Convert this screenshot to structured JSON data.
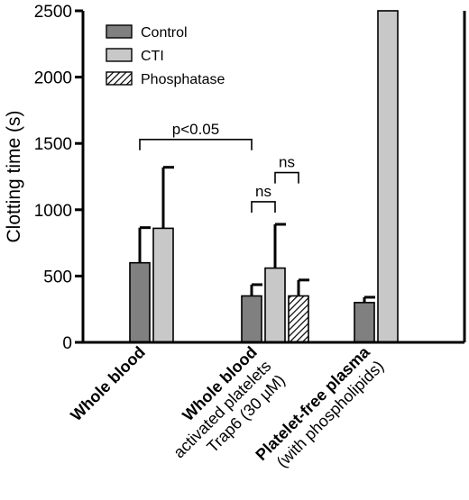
{
  "chart_data": {
    "type": "bar",
    "ylabel": "Clotting time (s)",
    "ylim": [
      0,
      2500
    ],
    "yticks": [
      0,
      500,
      1000,
      1500,
      2000,
      2500
    ],
    "grid": false,
    "legend_position": "top-left",
    "categories": [
      {
        "bold": "Whole blood",
        "lines": []
      },
      {
        "bold": "Whole blood",
        "lines": [
          "activated platelets",
          "Trap6 (30 µM)"
        ]
      },
      {
        "bold": "Platelet-free plasma",
        "lines": [
          "(with phospholipids)"
        ]
      }
    ],
    "series": [
      {
        "name": "Control",
        "color": "#808080",
        "pattern": "solid",
        "values": [
          600,
          350,
          300
        ],
        "errors": [
          265,
          85,
          40
        ]
      },
      {
        "name": "CTI",
        "color": "#c8c8c8",
        "pattern": "solid",
        "values": [
          860,
          560,
          2500
        ],
        "errors": [
          460,
          330,
          null
        ]
      },
      {
        "name": "Phosphatase",
        "color": "#ffffff",
        "pattern": "hatch",
        "values": [
          null,
          350,
          null
        ],
        "errors": [
          null,
          120,
          null
        ]
      }
    ],
    "annotations": [
      {
        "text": "p<0.05",
        "from": [
          0,
          0
        ],
        "to": [
          1,
          0
        ],
        "y": 1530
      },
      {
        "text": "ns",
        "from": [
          1,
          0
        ],
        "to": [
          1,
          1
        ],
        "y": 1060
      },
      {
        "text": "ns",
        "from": [
          1,
          1
        ],
        "to": [
          1,
          2
        ],
        "y": 1280
      }
    ]
  }
}
